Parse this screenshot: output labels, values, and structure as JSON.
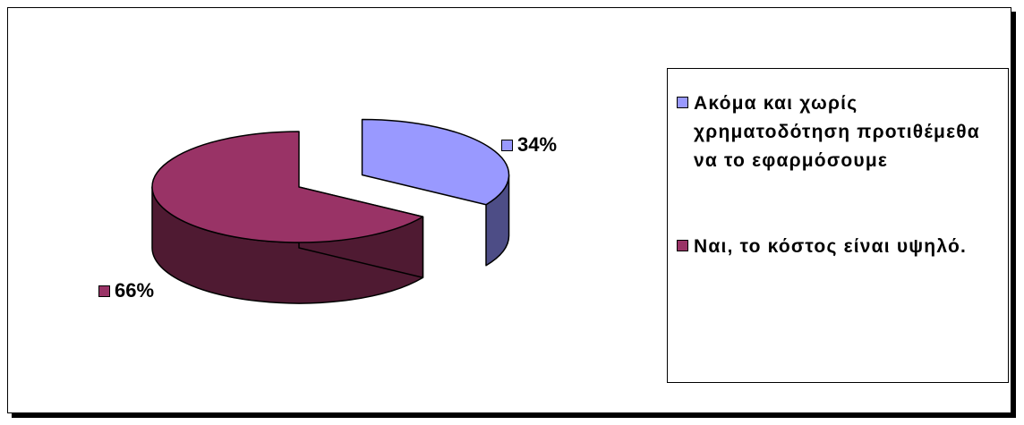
{
  "chart_data": {
    "type": "pie",
    "subtype": "3d-exploded",
    "slices": [
      {
        "label": "Ακόμα και χωρίς χρηματοδότηση προτιθέμεθα  να το εφαρμόσουμε",
        "value": 34,
        "display": "34%",
        "color": "#9999ff",
        "side_color": "#4d4d86"
      },
      {
        "label": "Ναι, το κόστος είναι υψηλό.",
        "value": 66,
        "display": "66%",
        "color": "#993366",
        "side_color": "#4f1a32"
      }
    ],
    "legend": {
      "position": "right",
      "entries": [
        {
          "label": "Ακόμα και χωρίς χρηματοδότηση προτιθέμεθα  να το εφαρμόσουμε",
          "color": "#9999ff"
        },
        {
          "label": "Ναι, το κόστος είναι υψηλό.",
          "color": "#993366"
        }
      ]
    }
  }
}
